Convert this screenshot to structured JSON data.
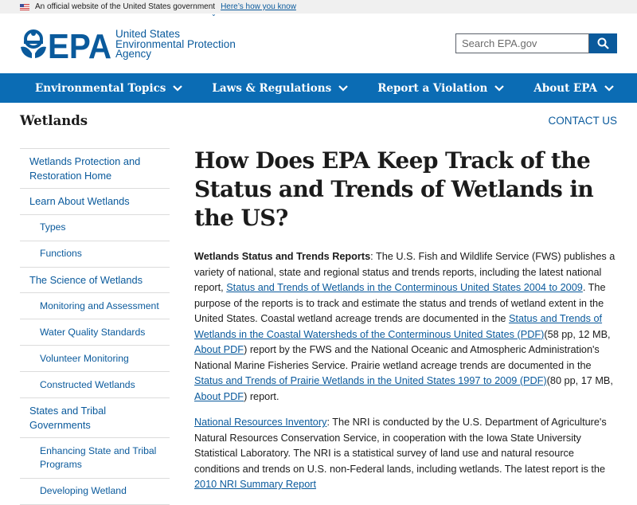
{
  "banner": {
    "text": "An official website of the United States government",
    "link": "Here’s how you know"
  },
  "logo": {
    "mark": "EPA",
    "line1": "United States",
    "line2": "Environmental Protection",
    "line3": "Agency"
  },
  "search": {
    "placeholder": "Search EPA.gov",
    "icon": "search-icon"
  },
  "nav": [
    {
      "label": "Environmental Topics"
    },
    {
      "label": "Laws & Regulations"
    },
    {
      "label": "Report a Violation"
    },
    {
      "label": "About EPA"
    }
  ],
  "section_title": "Wetlands",
  "contact": "CONTACT US",
  "sidebar": [
    {
      "label": "Wetlands Protection and Restoration Home",
      "sub": false
    },
    {
      "label": "Learn About Wetlands",
      "sub": false
    },
    {
      "label": "Types",
      "sub": true
    },
    {
      "label": "Functions",
      "sub": true
    },
    {
      "label": "The Science of Wetlands",
      "sub": false
    },
    {
      "label": "Monitoring and Assessment",
      "sub": true
    },
    {
      "label": "Water Quality Standards",
      "sub": true
    },
    {
      "label": "Volunteer Monitoring",
      "sub": true
    },
    {
      "label": "Constructed Wetlands",
      "sub": true
    },
    {
      "label": "States and Tribal Governments",
      "sub": false
    },
    {
      "label": "Enhancing State and Tribal Programs",
      "sub": true
    },
    {
      "label": "Developing Wetland",
      "sub": true
    }
  ],
  "main": {
    "title": "How Does EPA Keep Track of the Status and Trends of Wetlands in the US?",
    "p1": {
      "bold": "Wetlands Status and Trends Reports",
      "t1": ": The U.S. Fish and Wildlife Service (FWS) publishes a variety of national, state and regional status and trends reports, including the latest national report, ",
      "l1": "Status and Trends of Wetlands in the Conterminous United States 2004 to 2009",
      "t2": ". The purpose of the reports is to track and estimate the status and trends of wetland extent in the United States. Coastal wetland acreage trends are documented in the ",
      "l2": "Status and Trends of Wetlands in the Coastal Watersheds of the Conterminous United States (PDF)",
      "t3": "(58 pp, 12 MB, ",
      "l3": "About PDF",
      "t4": ") report by the FWS and the National Oceanic and Atmospheric Administration's National Marine Fisheries Service. Prairie wetland acreage trends are documented in the ",
      "l4": "Status and Trends of Prairie Wetlands in the United States 1997 to 2009 (PDF)",
      "t5": "(80 pp, 17 MB, ",
      "l5": "About PDF",
      "t6": ") report."
    },
    "p2": {
      "l1": "National Resources Inventory",
      "t1": ": The NRI is conducted by the U.S. Department of Agriculture's Natural Resources Conservation Service, in cooperation with the Iowa State University Statistical Laboratory. The NRI is a statistical survey of land use and natural resource conditions and trends on U.S. non-Federal lands, including wetlands. The latest report is the ",
      "l2": "2010 NRI Summary Report"
    }
  },
  "colors": {
    "brand": "#0a5a9c",
    "nav": "#0b6cb4",
    "banner": "#f0f0f0"
  }
}
